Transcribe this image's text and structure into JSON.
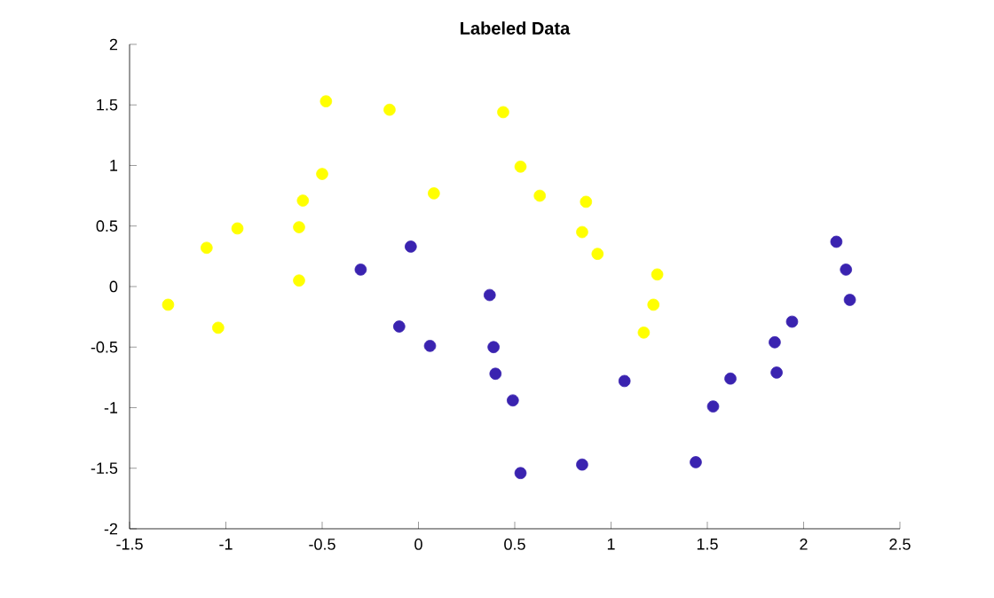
{
  "chart_data": {
    "type": "scatter",
    "title": "Labeled Data",
    "xlim": [
      -1.5,
      2.5
    ],
    "ylim": [
      -2,
      2
    ],
    "xticks": [
      -1.5,
      -1,
      -0.5,
      0,
      0.5,
      1,
      1.5,
      2,
      2.5
    ],
    "yticks": [
      -2,
      -1.5,
      -1,
      -0.5,
      0,
      0.5,
      1,
      1.5,
      2
    ],
    "marker": "circle",
    "grid": false,
    "series": [
      {
        "color": "#ffff00",
        "x": [
          -1.3,
          -1.1,
          -0.94,
          -1.04,
          -0.62,
          -0.62,
          -0.6,
          -0.5,
          -0.48,
          -0.15,
          0.08,
          0.44,
          0.53,
          0.63,
          0.87,
          0.85,
          0.93,
          1.24,
          1.22,
          1.17
        ],
        "values": [
          -0.15,
          0.32,
          0.48,
          -0.34,
          0.05,
          0.49,
          0.71,
          0.93,
          1.53,
          1.46,
          0.77,
          1.44,
          0.99,
          0.75,
          0.7,
          0.45,
          0.27,
          0.1,
          -0.15,
          -0.38
        ]
      },
      {
        "color": "#3a23b0",
        "x": [
          -0.3,
          -0.04,
          -0.1,
          0.06,
          0.37,
          0.39,
          0.4,
          0.49,
          0.53,
          0.85,
          1.07,
          1.44,
          1.53,
          1.62,
          1.85,
          1.86,
          1.94,
          2.17,
          2.22,
          2.24
        ],
        "values": [
          0.14,
          0.33,
          -0.33,
          -0.49,
          -0.07,
          -0.5,
          -0.72,
          -0.94,
          -1.54,
          -1.47,
          -0.78,
          -1.45,
          -0.99,
          -0.76,
          -0.46,
          -0.71,
          -0.29,
          0.37,
          0.14,
          -0.11
        ]
      }
    ]
  }
}
